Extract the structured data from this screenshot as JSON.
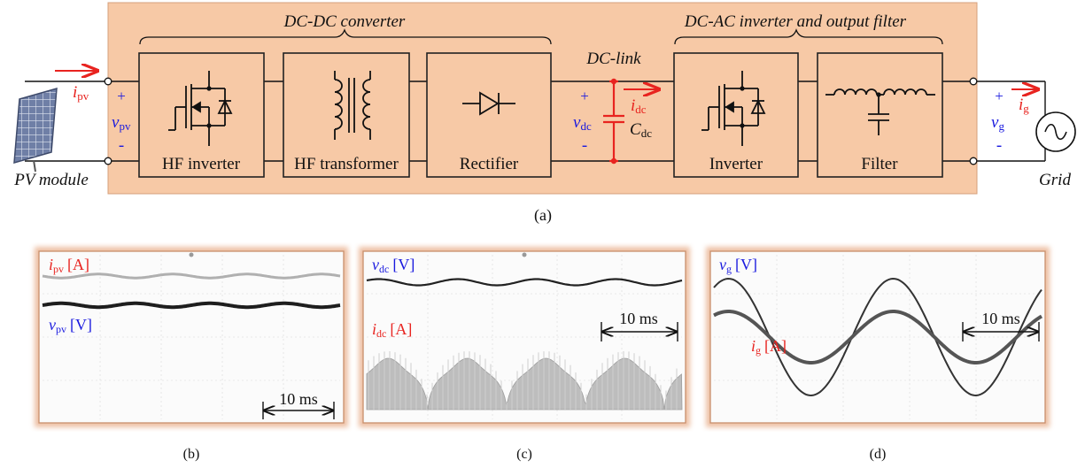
{
  "figure_a": {
    "section_dcdc": "DC-DC converter",
    "section_dcac": "DC-AC inverter and output filter",
    "dc_link": "DC-link",
    "pv_module": "PV module",
    "grid": "Grid",
    "blocks": {
      "hf_inverter": "HF inverter",
      "hf_transformer": "HF transformer",
      "rectifier": "Rectifier",
      "inverter": "Inverter",
      "filter": "Filter"
    },
    "symbols": {
      "i_pv": "i",
      "i_pv_sub": "pv",
      "v_pv": "v",
      "v_pv_sub": "pv",
      "v_dc": "v",
      "v_dc_sub": "dc",
      "i_dc": "i",
      "i_dc_sub": "dc",
      "c_dc": "C",
      "c_dc_sub": "dc",
      "v_g": "v",
      "v_g_sub": "g",
      "i_g": "i",
      "i_g_sub": "g",
      "plus": "+",
      "minus": "-"
    },
    "caption": "(a)"
  },
  "figure_b": {
    "i_label": "i",
    "i_sub": "pv",
    "i_unit": "[A]",
    "v_label": "v",
    "v_sub": "pv",
    "v_unit": "[V]",
    "time_scale": "10 ms",
    "caption": "(b)"
  },
  "figure_c": {
    "v_label": "v",
    "v_sub": "dc",
    "v_unit": "[V]",
    "i_label": "i",
    "i_sub": "dc",
    "i_unit": "[A]",
    "time_scale": "10 ms",
    "caption": "(c)"
  },
  "figure_d": {
    "v_label": "v",
    "v_sub": "g",
    "v_unit": "[V]",
    "i_label": "i",
    "i_sub": "g",
    "i_unit": "[A]",
    "time_scale": "10 ms",
    "caption": "(d)"
  },
  "colors": {
    "panel_fill": "#f7c9a6",
    "block_fill": "#f7c9a6",
    "current_red": "#e8231f",
    "voltage_blue": "#1a1adf",
    "trace_dark": "#222222",
    "trace_light": "#a8a8a8",
    "dc_trace": "#b5b5b5"
  }
}
